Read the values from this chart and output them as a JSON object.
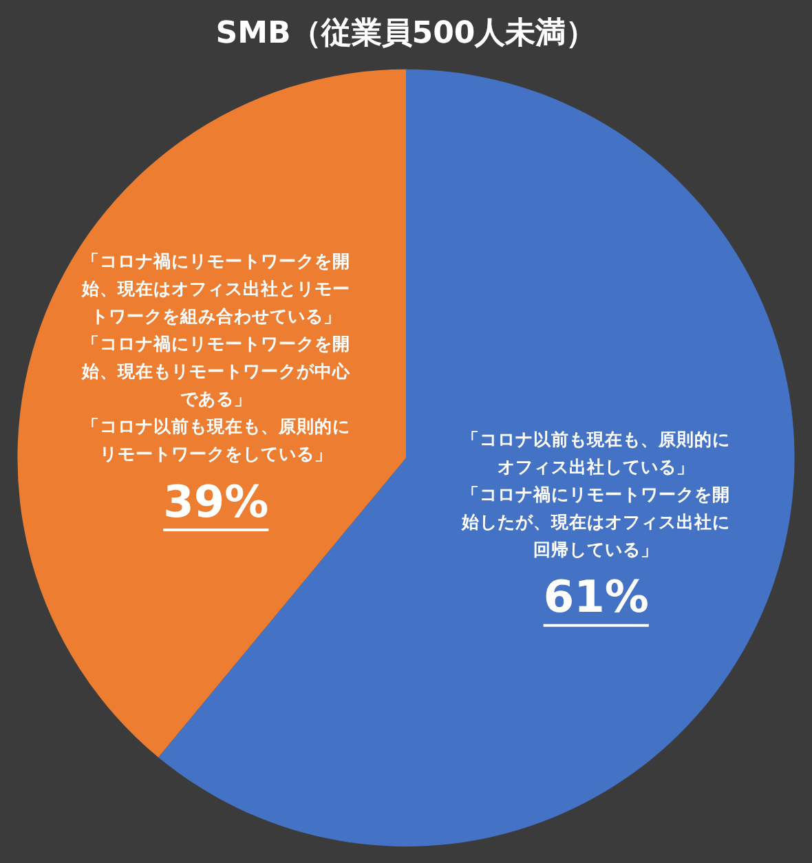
{
  "chart_data": {
    "type": "pie",
    "title": "SMB（従業員500人未満）",
    "categories": [
      "「コロナ以前も現在も、原則的にオフィス出社している」「コロナ禍にリモートワークを開始したが、現在はオフィス出社に回帰している」",
      "「コロナ禍にリモートワークを開始、現在はオフィス出社とリモートワークを組み合わせている」「コロナ禍にリモートワークを開始、現在もリモートワークが中心である」「コロナ以前も現在も、原則的にリモートワークをしている」"
    ],
    "values": [
      61,
      39
    ],
    "colors": [
      "#4472c4",
      "#ed7d31"
    ],
    "value_labels": [
      "61%",
      "39%"
    ],
    "legend": false
  }
}
